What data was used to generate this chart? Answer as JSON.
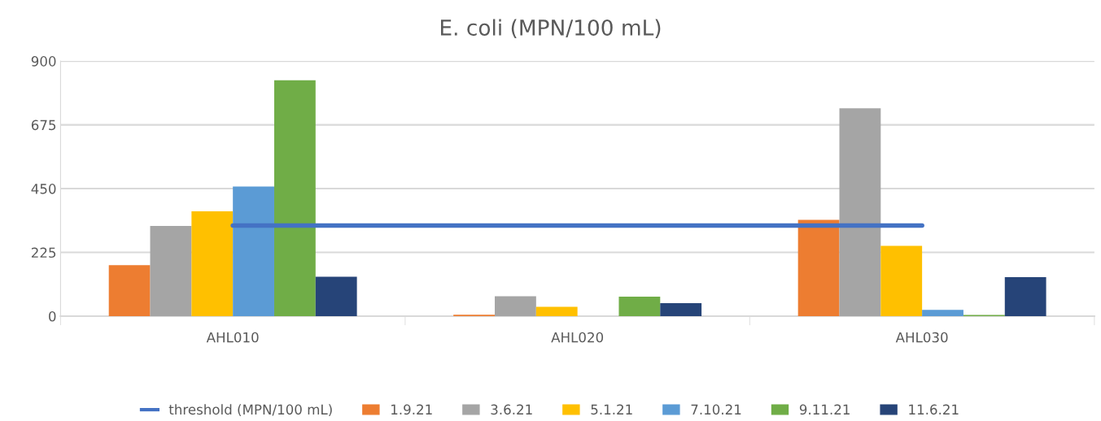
{
  "chart_data": {
    "type": "bar",
    "title": "E. coli (MPN/100 mL)",
    "categories": [
      "AHL010",
      "AHL020",
      "AHL030"
    ],
    "series": [
      {
        "name": "threshold (MPN/100 mL)",
        "type": "line",
        "color": "#4472c4",
        "values": [
          320,
          320,
          320
        ]
      },
      {
        "name": "1.9.21",
        "color": "#ed7d31",
        "values": [
          180,
          5,
          340
        ]
      },
      {
        "name": "3.6.21",
        "color": "#a5a5a5",
        "values": [
          318,
          70,
          733
        ]
      },
      {
        "name": "5.1.21",
        "color": "#ffc000",
        "values": [
          370,
          33,
          248
        ]
      },
      {
        "name": "7.10.21",
        "color": "#5b9bd5",
        "values": [
          457,
          0,
          22
        ]
      },
      {
        "name": "9.11.21",
        "color": "#70ad47",
        "values": [
          832,
          69,
          4
        ]
      },
      {
        "name": "11.6.21",
        "color": "#264478",
        "values": [
          139,
          46,
          138
        ]
      }
    ],
    "ylim": [
      0,
      900
    ],
    "yticks": [
      0,
      225,
      450,
      675,
      900
    ],
    "grid": "y",
    "legend": "bottom"
  }
}
